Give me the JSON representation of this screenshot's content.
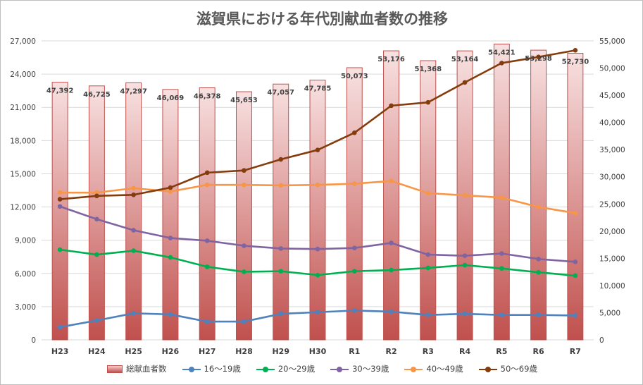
{
  "chart_data": {
    "type": "bar+line",
    "title": "滋賀県における年代別献血者数の推移",
    "categories": [
      "H23",
      "H24",
      "H25",
      "H26",
      "H27",
      "H28",
      "H29",
      "H30",
      "R1",
      "R2",
      "R3",
      "R4",
      "R5",
      "R6",
      "R7"
    ],
    "y_left": {
      "min": 0,
      "max": 27000,
      "step": 3000,
      "ticks": [
        "0",
        "3,000",
        "6,000",
        "9,000",
        "12,000",
        "15,000",
        "18,000",
        "21,000",
        "24,000",
        "27,000"
      ]
    },
    "y_right": {
      "min": 0,
      "max": 55000,
      "step": 5000,
      "ticks": [
        "0",
        "5,000",
        "10,000",
        "15,000",
        "20,000",
        "25,000",
        "30,000",
        "35,000",
        "40,000",
        "45,000",
        "50,000",
        "55,000"
      ]
    },
    "bar_series": {
      "name": "総献血者数",
      "axis": "right",
      "color": "#c0504d",
      "values": [
        47392,
        46725,
        47297,
        46069,
        46378,
        45653,
        47057,
        47785,
        50073,
        53176,
        51368,
        53164,
        54421,
        53298,
        52730
      ],
      "labels": [
        "47,392",
        "46,725",
        "47,297",
        "46,069",
        "46,378",
        "45,653",
        "47,057",
        "47,785",
        "50,073",
        "53,176",
        "51,368",
        "53,164",
        "54,421",
        "53,298",
        "52,730"
      ]
    },
    "line_series": [
      {
        "name": "16～19歳",
        "axis": "left",
        "color": "#4f81bd",
        "values": [
          1150,
          1750,
          2400,
          2300,
          1650,
          1650,
          2350,
          2500,
          2650,
          2550,
          2250,
          2350,
          2250,
          2250,
          2200
        ]
      },
      {
        "name": "20～29歳",
        "axis": "left",
        "color": "#00b050",
        "values": [
          8150,
          7700,
          8050,
          7450,
          6600,
          6150,
          6200,
          5850,
          6200,
          6300,
          6500,
          6750,
          6450,
          6100,
          5800
        ]
      },
      {
        "name": "30～39歳",
        "axis": "left",
        "color": "#8064a2",
        "values": [
          12050,
          10900,
          9900,
          9200,
          8950,
          8500,
          8250,
          8200,
          8300,
          8750,
          7700,
          7600,
          7800,
          7300,
          7050
        ]
      },
      {
        "name": "40～49歳",
        "axis": "left",
        "color": "#f79646",
        "values": [
          13300,
          13300,
          13700,
          13400,
          14000,
          14000,
          13950,
          14000,
          14100,
          14350,
          13250,
          13050,
          12850,
          12000,
          11450
        ]
      },
      {
        "name": "50～69歳",
        "axis": "left",
        "color": "#843c0c",
        "values": [
          12700,
          13000,
          13100,
          13750,
          15100,
          15300,
          16300,
          17150,
          18700,
          21150,
          21450,
          23250,
          25000,
          25550,
          26150
        ]
      }
    ],
    "legend_position": "bottom",
    "grid": "horizontal"
  }
}
